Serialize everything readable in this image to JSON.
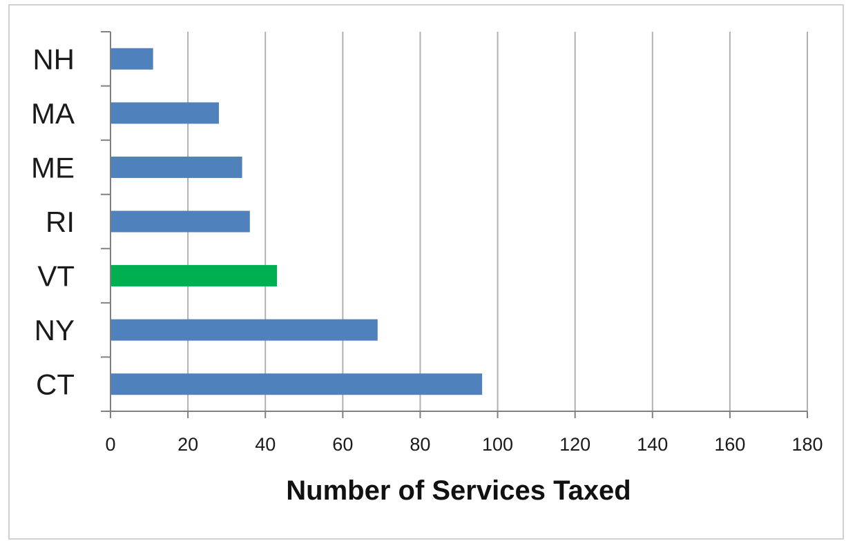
{
  "chart_data": {
    "type": "bar",
    "orientation": "horizontal",
    "categories": [
      "NH",
      "MA",
      "ME",
      "RI",
      "VT",
      "NY",
      "CT"
    ],
    "values": [
      11,
      28,
      34,
      36,
      43,
      69,
      96
    ],
    "colors": [
      "#4f81bd",
      "#4f81bd",
      "#4f81bd",
      "#4f81bd",
      "#00b050",
      "#4f81bd",
      "#4f81bd"
    ],
    "title": "",
    "xlabel": "Number of Services Taxed",
    "ylabel": "",
    "xlim": [
      0,
      180
    ],
    "xticks": [
      0,
      20,
      40,
      60,
      80,
      100,
      120,
      140,
      160,
      180
    ],
    "xtick_labels": [
      "0",
      "20",
      "40",
      "60",
      "80",
      "100",
      "120",
      "140",
      "160",
      "180"
    ],
    "grid": "vertical",
    "legend": "none",
    "colors_meta": {
      "bar_default": "#4f81bd",
      "bar_highlight": "#00b050",
      "gridline": "#b0b0b0",
      "axis": "#808080"
    }
  }
}
